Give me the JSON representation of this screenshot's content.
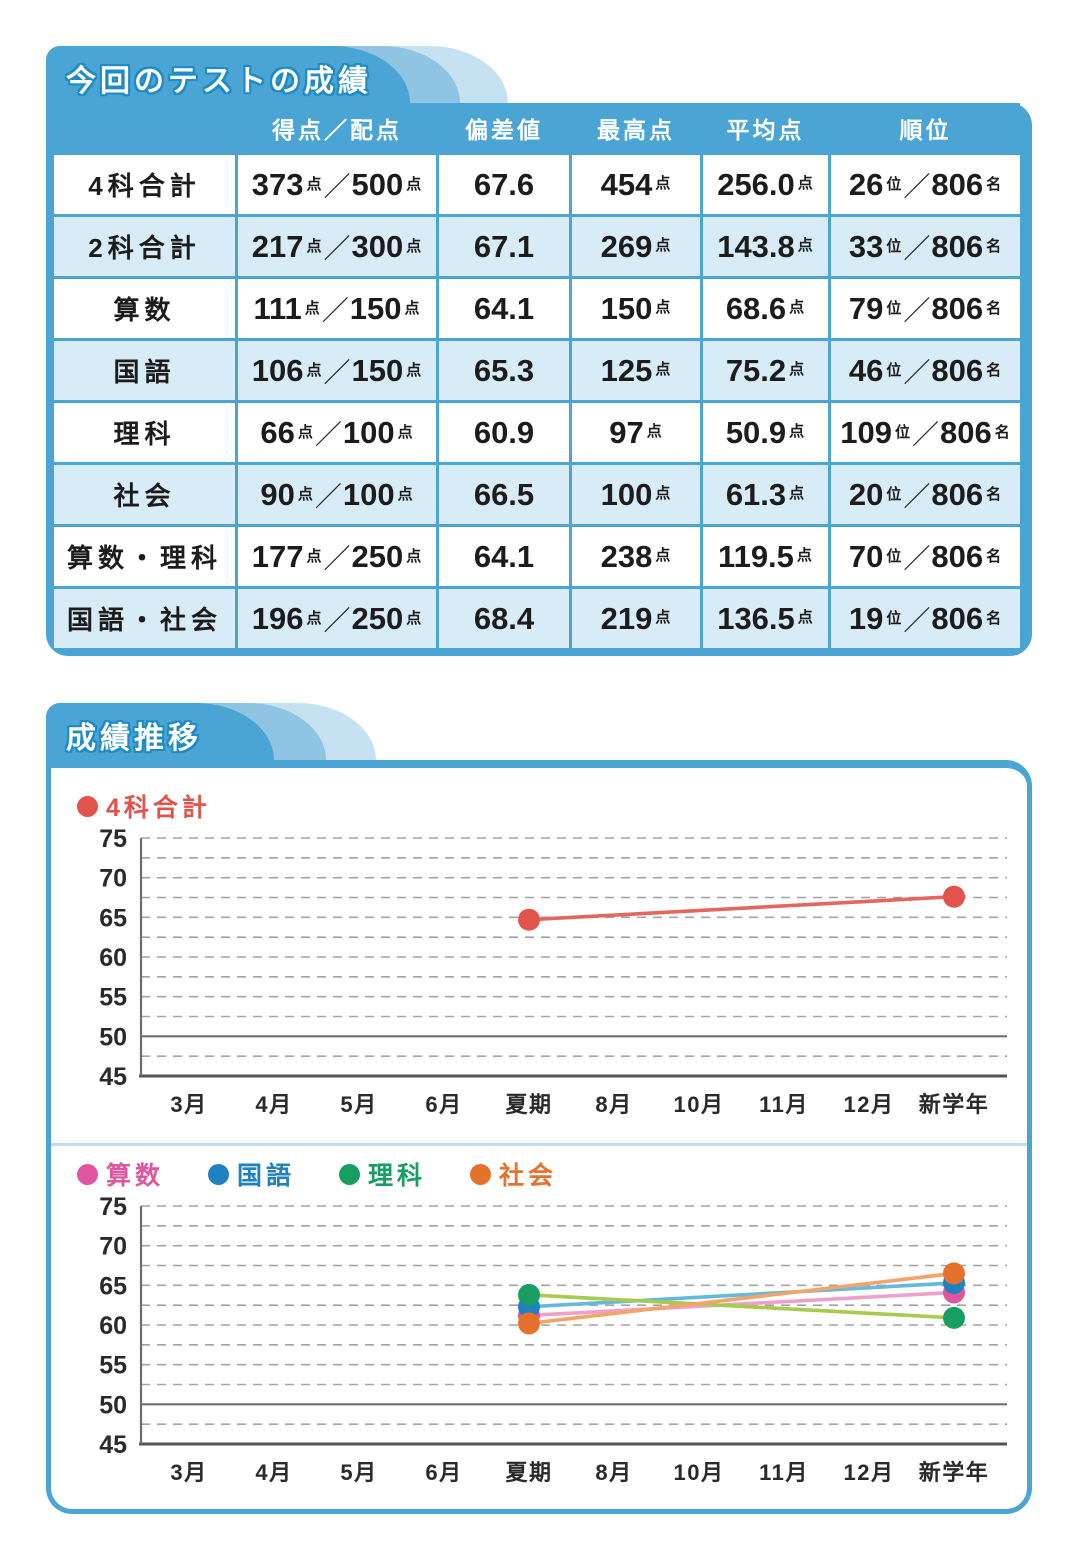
{
  "sections": {
    "current_test": {
      "title": "今回のテストの成績"
    },
    "trend": {
      "title": "成績推移"
    }
  },
  "colors": {
    "tab_blue": "#4aa4d4",
    "tab_medium": "#8fc4e2",
    "tab_light": "#c6e1f1",
    "row_alt": "#d7ecf7",
    "divider": "#b9dcef",
    "grid_dash": "#a3a3a3",
    "grid_baseline": "#6e6e6e",
    "axis": "#555555"
  },
  "table": {
    "columns": [
      "得点／配点",
      "偏差値",
      "最高点",
      "平均点",
      "順位"
    ],
    "units": {
      "point": "点",
      "rank": "位",
      "people": "名",
      "slash": "／"
    },
    "rows": [
      {
        "label": "4科合計",
        "score": "373",
        "max": "500",
        "dev": "67.6",
        "high": "454",
        "avg": "256.0",
        "rank": "26",
        "total": "806"
      },
      {
        "label": "2科合計",
        "score": "217",
        "max": "300",
        "dev": "67.1",
        "high": "269",
        "avg": "143.8",
        "rank": "33",
        "total": "806"
      },
      {
        "label": "算数",
        "score": "111",
        "max": "150",
        "dev": "64.1",
        "high": "150",
        "avg": "68.6",
        "rank": "79",
        "total": "806"
      },
      {
        "label": "国語",
        "score": "106",
        "max": "150",
        "dev": "65.3",
        "high": "125",
        "avg": "75.2",
        "rank": "46",
        "total": "806"
      },
      {
        "label": "理科",
        "score": "66",
        "max": "100",
        "dev": "60.9",
        "high": "97",
        "avg": "50.9",
        "rank": "109",
        "total": "806"
      },
      {
        "label": "社会",
        "score": "90",
        "max": "100",
        "dev": "66.5",
        "high": "100",
        "avg": "61.3",
        "rank": "20",
        "total": "806"
      },
      {
        "label": "算数・理科",
        "score": "177",
        "max": "250",
        "dev": "64.1",
        "high": "238",
        "avg": "119.5",
        "rank": "70",
        "total": "806"
      },
      {
        "label": "国語・社会",
        "score": "196",
        "max": "250",
        "dev": "68.4",
        "high": "219",
        "avg": "136.5",
        "rank": "19",
        "total": "806"
      }
    ]
  },
  "chart_data": [
    {
      "type": "line",
      "title": "成績推移（4科合計）",
      "categories": [
        "3月",
        "4月",
        "5月",
        "6月",
        "夏期",
        "8月",
        "10月",
        "11月",
        "12月",
        "新学年"
      ],
      "ylim": [
        45,
        75
      ],
      "yticks": [
        45,
        50,
        55,
        60,
        65,
        70,
        75
      ],
      "minor_grid_step": 2.5,
      "baseline": 50,
      "grid": "dashed",
      "legend_position": "top-left",
      "series": [
        {
          "name": "4科合計",
          "color": "#e2544b",
          "line_color": "#e4675e",
          "values": [
            null,
            null,
            null,
            null,
            64.7,
            null,
            null,
            null,
            null,
            67.6
          ]
        }
      ]
    },
    {
      "type": "line",
      "title": "成績推移（教科別）",
      "categories": [
        "3月",
        "4月",
        "5月",
        "6月",
        "夏期",
        "8月",
        "10月",
        "11月",
        "12月",
        "新学年"
      ],
      "ylim": [
        45,
        75
      ],
      "yticks": [
        45,
        50,
        55,
        60,
        65,
        70,
        75
      ],
      "minor_grid_step": 2.5,
      "baseline": 50,
      "grid": "dashed",
      "legend_position": "top-left",
      "series": [
        {
          "name": "算数",
          "color": "#e0559f",
          "line_color": "#efa0c9",
          "values": [
            null,
            null,
            null,
            null,
            61.2,
            null,
            null,
            null,
            null,
            64.1
          ]
        },
        {
          "name": "国語",
          "color": "#1f80c2",
          "line_color": "#66b8dc",
          "values": [
            null,
            null,
            null,
            null,
            62.3,
            null,
            null,
            null,
            null,
            65.3
          ]
        },
        {
          "name": "理科",
          "color": "#189e62",
          "line_color": "#a6cb4f",
          "values": [
            null,
            null,
            null,
            null,
            63.8,
            null,
            null,
            null,
            null,
            60.9
          ]
        },
        {
          "name": "社会",
          "color": "#e4722c",
          "line_color": "#f2a469",
          "values": [
            null,
            null,
            null,
            null,
            60.2,
            null,
            null,
            null,
            null,
            66.5
          ]
        }
      ]
    }
  ]
}
